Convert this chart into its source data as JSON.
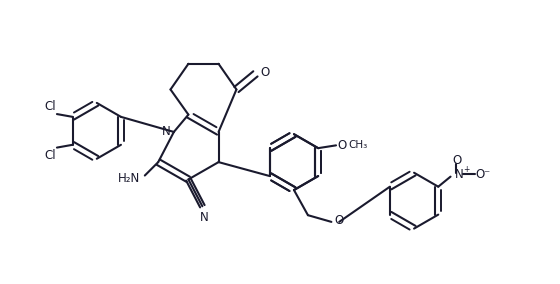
{
  "bg": "#ffffff",
  "lc": "#1a1a2e",
  "lw": 1.5,
  "lw_inner": 1.4,
  "fs": 8.5,
  "figsize": [
    5.6,
    2.84
  ],
  "dpi": 100,
  "xlim": [
    0,
    10
  ],
  "ylim": [
    0,
    5
  ]
}
